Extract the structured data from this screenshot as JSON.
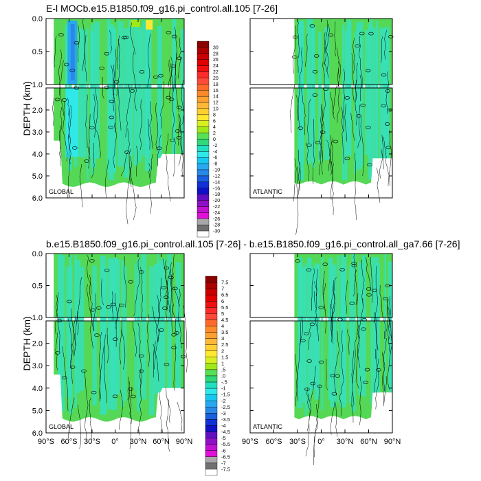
{
  "chart_data": [
    {
      "type": "heatmap",
      "title": "E-l MOCb.e15.B1850.f09_g16.pi_control.all.105 [7-26]",
      "ylabel": "DEPTH (km)",
      "panels": [
        {
          "label": "GLOBAL",
          "xlim": [
            -90,
            90
          ],
          "ylim_upper": [
            0.0,
            1.0
          ],
          "ylim_lower": [
            1.0,
            6.0
          ]
        },
        {
          "label": "ATLANTIC",
          "xlim": [
            -90,
            90
          ],
          "ylim_upper": [
            0.0,
            1.0
          ],
          "ylim_lower": [
            1.0,
            6.0
          ]
        }
      ],
      "yticks_upper": [
        "0.0",
        "0.5",
        "1.0"
      ],
      "yticks_lower": [
        "2.0",
        "3.0",
        "4.0",
        "5.0",
        "6.0"
      ],
      "colorbar_labels": [
        "30",
        "28",
        "26",
        "24",
        "22",
        "20",
        "18",
        "16",
        "14",
        "12",
        "10",
        "8",
        "6",
        "4",
        "2",
        "0",
        "-2",
        "-4",
        "-6",
        "-8",
        "-10",
        "-12",
        "-14",
        "-16",
        "-18",
        "-20",
        "-22",
        "-24",
        "-26",
        "-28",
        "-30"
      ]
    },
    {
      "type": "heatmap",
      "title": "b.e15.B1850.f09_g16.pi_control.all.105 [7-26] - b.e15.B1850.f09_g16.pi_control.all_ga7.66 [7-26]",
      "ylabel": "DEPTH (km)",
      "panels": [
        {
          "label": "GLOBAL",
          "xlim": [
            -90,
            90
          ],
          "ylim_upper": [
            0.0,
            1.0
          ],
          "ylim_lower": [
            1.0,
            6.0
          ]
        },
        {
          "label": "ATLANTIC",
          "xlim": [
            -90,
            90
          ],
          "ylim_upper": [
            0.0,
            1.0
          ],
          "ylim_lower": [
            1.0,
            6.0
          ]
        }
      ],
      "yticks_upper": [
        "0.0",
        "0.5",
        "1.0"
      ],
      "yticks_lower": [
        "2.0",
        "3.0",
        "4.0",
        "5.0",
        "6.0"
      ],
      "xticks": [
        "90°S",
        "60°S",
        "30°S",
        "0°",
        "30°N",
        "60°N",
        "90°N"
      ],
      "colorbar_labels": [
        "7.5",
        "7",
        "6.5",
        "6",
        "5.5",
        "5",
        "4.5",
        "4",
        "3.5",
        "3",
        "2.5",
        "2",
        "1.5",
        "1",
        ".5",
        ".0",
        "-.5",
        "-1",
        "-1.5",
        "-2",
        "-2.5",
        "-3",
        "-3.5",
        "-4",
        "-4.5",
        "-5",
        "-5.5",
        "-6",
        "-6.5",
        "-7",
        "-7.5"
      ]
    }
  ],
  "colors": {
    "ramp": [
      "#8b0000",
      "#a90000",
      "#c80000",
      "#e00000",
      "#f01010",
      "#ff2a2a",
      "#ff4a3a",
      "#ff6a2a",
      "#ff8a2a",
      "#ffa030",
      "#ffb838",
      "#ffd030",
      "#ffe830",
      "#d8f020",
      "#a0e818",
      "#55e055",
      "#30d878",
      "#20e0c0",
      "#30e8e8",
      "#18c8f0",
      "#28a8f0",
      "#2888e8",
      "#1860e0",
      "#1030d8",
      "#1010c8",
      "#6010c0",
      "#9010c8",
      "#c010d0",
      "#e010d8",
      "#a8a8a8",
      "#707070",
      "#ffffff"
    ],
    "ocean_green": "#55d855",
    "ocean_teal": "#38e0b8"
  }
}
